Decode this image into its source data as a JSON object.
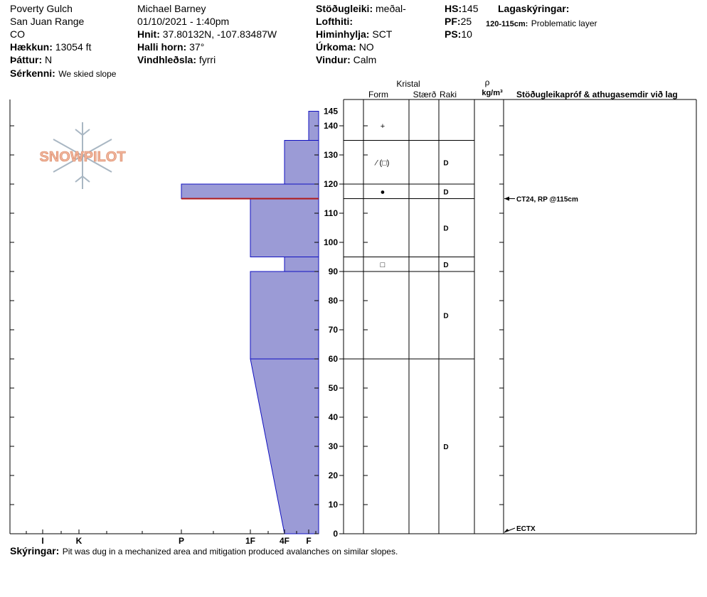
{
  "header": {
    "location": "Poverty Gulch",
    "range": "San Juan Range",
    "state": "CO",
    "elevation_label": "Hækkun:",
    "elevation_value": "13054 ft",
    "aspect_label": "Þáttur:",
    "aspect_value": "N",
    "features_label": "Sérkenni:",
    "features_value": "We skied slope",
    "observer": "Michael Barney",
    "datetime": "01/10/2021 - 1:40pm",
    "coords_label": "Hnit:",
    "coords_value": "37.80132N, -107.83487W",
    "slope_label": "Halli horn:",
    "slope_value": "37°",
    "wind_loading_label": "Vindhleðsla:",
    "wind_loading_value": "fyrri",
    "stability_label": "Stöðugleiki:",
    "stability_value": "meðal-",
    "air_temp_label": "Lofthiti:",
    "air_temp_value": "",
    "sky_label": "Himinhylja:",
    "sky_value": "SCT",
    "precip_label": "Úrkoma:",
    "precip_value": "NO",
    "wind_label": "Vindur:",
    "wind_value": "Calm",
    "hs_label": "HS:",
    "hs_value": "145",
    "pf_label": "PF:",
    "pf_value": "25",
    "ps_label": "PS:",
    "ps_value": "10",
    "legend_label": "Lagaskýringar:",
    "legend_range": "120-115cm:",
    "legend_text": "Problematic layer"
  },
  "columns": {
    "crystal": "Kristal",
    "form": "Form",
    "size": "Stærð",
    "moisture": "Raki",
    "rho": "ρ",
    "density_unit": "kg/m³",
    "tests": "Stöðugleikapróf & athugasemdir við lag"
  },
  "logo_text": "SNOWPILOT",
  "footer": {
    "comments_label": "Skýringar:",
    "comments_text": "Pit was dug in a mechanized area and mitigation produced avalanches on similar slopes."
  },
  "colors": {
    "layer_fill": "#9b9bd6",
    "layer_stroke": "#1010c0",
    "problem_line": "#b01818",
    "logo": "#f0b49c"
  },
  "chart_data": {
    "type": "bar",
    "subtype": "snow-profile-hardness",
    "y_unit": "cm",
    "ylim": [
      0,
      145
    ],
    "y_ticks": [
      0,
      10,
      20,
      30,
      40,
      50,
      60,
      70,
      80,
      90,
      100,
      110,
      120,
      130,
      140,
      145
    ],
    "hardness_scale": [
      "I",
      "K",
      "P",
      "1F",
      "4F",
      "F"
    ],
    "layers": [
      {
        "top": 145,
        "bottom": 135,
        "hardness_top": "F",
        "hardness_bottom": "F",
        "form": "+",
        "moisture": ""
      },
      {
        "top": 135,
        "bottom": 120,
        "hardness_top": "4F",
        "hardness_bottom": "4F",
        "form": "⁄ (□)",
        "moisture": "D"
      },
      {
        "top": 120,
        "bottom": 115,
        "hardness_top": "P",
        "hardness_bottom": "P",
        "form": "●",
        "moisture": "D"
      },
      {
        "top": 115,
        "bottom": 95,
        "hardness_top": "1F",
        "hardness_bottom": "1F",
        "form": "",
        "moisture": "D"
      },
      {
        "top": 95,
        "bottom": 90,
        "hardness_top": "4F",
        "hardness_bottom": "4F",
        "form": "□",
        "moisture": "D"
      },
      {
        "top": 90,
        "bottom": 60,
        "hardness_top": "1F",
        "hardness_bottom": "1F",
        "form": "",
        "moisture": "D"
      },
      {
        "top": 60,
        "bottom": 0,
        "hardness_top": "1F",
        "hardness_bottom": "4F",
        "form": "",
        "moisture": "D"
      }
    ],
    "problem_layer": [
      120,
      115
    ],
    "tests": [
      {
        "depth": 115,
        "label": "CT24, RP @115cm"
      },
      {
        "depth": 0,
        "label": "ECTX"
      }
    ]
  }
}
